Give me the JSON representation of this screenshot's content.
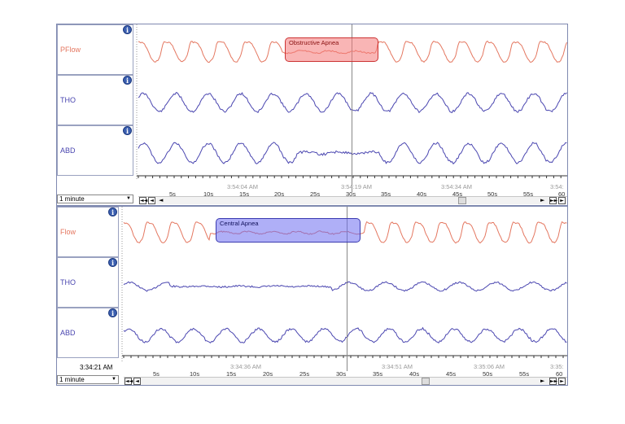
{
  "panel1": {
    "channels": [
      {
        "name": "PFlow",
        "color": "#e47760"
      },
      {
        "name": "THO",
        "color": "#4a46b0"
      },
      {
        "name": "ABD",
        "color": "#4a46b0"
      }
    ],
    "info_glyph": "i",
    "annotation": {
      "label": "Obstructive Apnea",
      "color": "#f48a8a"
    },
    "ticks": [
      "5s",
      "10s",
      "15s",
      "20s",
      "25s",
      "30s",
      "35s",
      "40s",
      "45s",
      "50s",
      "55s",
      "60"
    ],
    "timestamps": [
      "3:54:04 AM",
      "3:54:19 AM",
      "3:54:34 AM",
      "3:54:"
    ],
    "window": "1 minute"
  },
  "panel2": {
    "channels": [
      {
        "name": "Flow",
        "color": "#e47760"
      },
      {
        "name": "THO",
        "color": "#4a46b0"
      },
      {
        "name": "ABD",
        "color": "#4a46b0"
      }
    ],
    "info_glyph": "i",
    "annotation": {
      "label": "Central Apnea",
      "color": "#8f8ff0"
    },
    "ticks": [
      "5s",
      "10s",
      "15s",
      "20s",
      "25s",
      "30s",
      "35s",
      "40s",
      "45s",
      "50s",
      "55s",
      "60"
    ],
    "timestamps": [
      "3:34:36 AM",
      "3:34:51 AM",
      "3:35:06 AM",
      "3:35:"
    ],
    "current_time": "3:34:21 AM",
    "window": "1 minute"
  },
  "controls": {
    "first": "◄◄",
    "prev_page": "◄",
    "next_page": "►",
    "last": "►►",
    "left": "◄",
    "right": "►"
  }
}
